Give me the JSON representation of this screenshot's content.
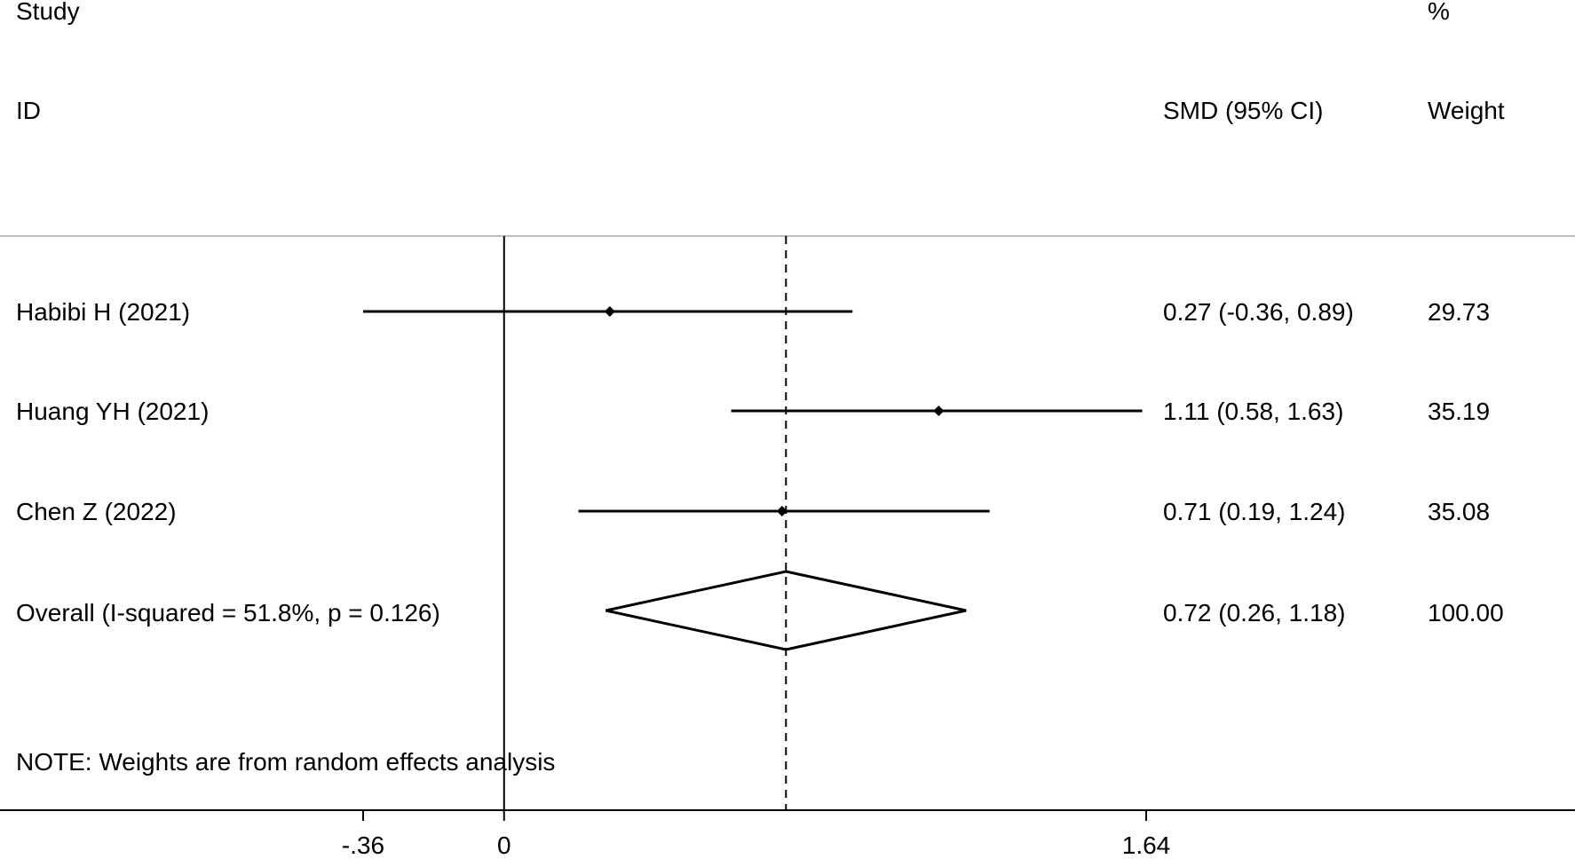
{
  "chart_data": {
    "type": "forest",
    "columns": {
      "study_header_line1": "Study",
      "study_header_line2": "ID",
      "effect_header": "SMD (95% CI)",
      "weight_header_line1": "%",
      "weight_header_line2": "Weight"
    },
    "studies": [
      {
        "label": "Habibi H (2021)",
        "smd": 0.27,
        "ci_low": -0.36,
        "ci_high": 0.89,
        "ci_text": "0.27 (-0.36, 0.89)",
        "weight": "29.73"
      },
      {
        "label": "Huang YH (2021)",
        "smd": 1.11,
        "ci_low": 0.58,
        "ci_high": 1.63,
        "ci_text": "1.11 (0.58, 1.63)",
        "weight": "35.19"
      },
      {
        "label": "Chen Z (2022)",
        "smd": 0.71,
        "ci_low": 0.19,
        "ci_high": 1.24,
        "ci_text": "0.71 (0.19, 1.24)",
        "weight": "35.08"
      }
    ],
    "overall": {
      "label": "Overall  (I-squared = 51.8%, p = 0.126)",
      "smd": 0.72,
      "ci_low": 0.26,
      "ci_high": 1.18,
      "ci_text": "0.72 (0.26, 1.18)",
      "weight": "100.00"
    },
    "note": "NOTE: Weights are from random effects analysis",
    "x_ticks": [
      {
        "value": -0.36,
        "label": "-.36"
      },
      {
        "value": 0,
        "label": "0"
      },
      {
        "value": 1.64,
        "label": "1.64"
      }
    ],
    "xlim": [
      -0.36,
      1.64
    ],
    "null_line": 0,
    "pooled_line_dashed": true
  }
}
